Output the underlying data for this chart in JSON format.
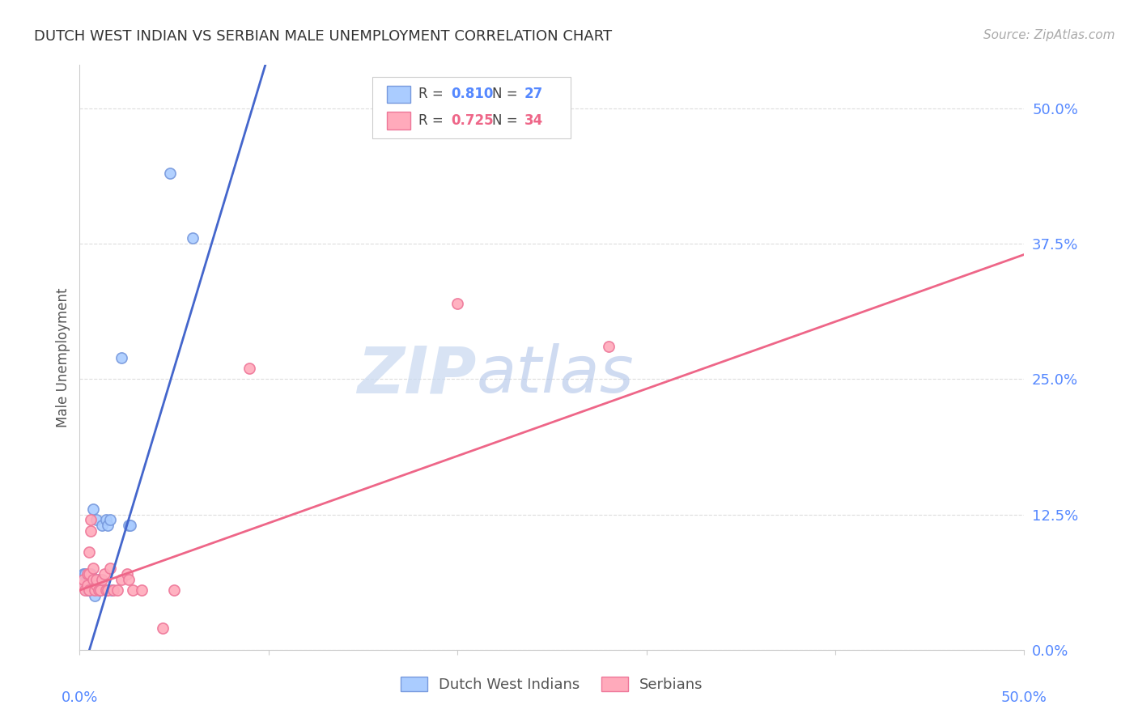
{
  "title": "DUTCH WEST INDIAN VS SERBIAN MALE UNEMPLOYMENT CORRELATION CHART",
  "source": "Source: ZipAtlas.com",
  "ylabel": "Male Unemployment",
  "ytick_labels": [
    "0.0%",
    "12.5%",
    "25.0%",
    "37.5%",
    "50.0%"
  ],
  "ytick_values": [
    0.0,
    0.125,
    0.25,
    0.375,
    0.5
  ],
  "xrange": [
    0.0,
    0.5
  ],
  "yrange": [
    0.0,
    0.54
  ],
  "background_color": "#ffffff",
  "grid_color": "#dddddd",
  "legend_R1": "0.810",
  "legend_N1": "27",
  "legend_R2": "0.725",
  "legend_N2": "34",
  "blue_line_color": "#4466cc",
  "pink_line_color": "#ee6688",
  "blue_scatter_face": "#aaccff",
  "pink_scatter_face": "#ffaabb",
  "blue_scatter_edge": "#7799dd",
  "pink_scatter_edge": "#ee7799",
  "tick_color": "#5588ff",
  "blue_scatter": [
    [
      0.001,
      0.065
    ],
    [
      0.002,
      0.07
    ],
    [
      0.003,
      0.06
    ],
    [
      0.003,
      0.07
    ],
    [
      0.004,
      0.055
    ],
    [
      0.004,
      0.065
    ],
    [
      0.005,
      0.06
    ],
    [
      0.005,
      0.065
    ],
    [
      0.005,
      0.055
    ],
    [
      0.006,
      0.07
    ],
    [
      0.006,
      0.06
    ],
    [
      0.007,
      0.055
    ],
    [
      0.007,
      0.13
    ],
    [
      0.008,
      0.05
    ],
    [
      0.009,
      0.12
    ],
    [
      0.01,
      0.065
    ],
    [
      0.011,
      0.055
    ],
    [
      0.012,
      0.115
    ],
    [
      0.014,
      0.12
    ],
    [
      0.015,
      0.115
    ],
    [
      0.016,
      0.12
    ],
    [
      0.017,
      0.055
    ],
    [
      0.022,
      0.27
    ],
    [
      0.026,
      0.115
    ],
    [
      0.027,
      0.115
    ],
    [
      0.048,
      0.44
    ],
    [
      0.06,
      0.38
    ]
  ],
  "pink_scatter": [
    [
      0.001,
      0.06
    ],
    [
      0.002,
      0.065
    ],
    [
      0.003,
      0.055
    ],
    [
      0.004,
      0.06
    ],
    [
      0.004,
      0.07
    ],
    [
      0.005,
      0.055
    ],
    [
      0.005,
      0.07
    ],
    [
      0.005,
      0.09
    ],
    [
      0.006,
      0.12
    ],
    [
      0.006,
      0.11
    ],
    [
      0.007,
      0.065
    ],
    [
      0.007,
      0.075
    ],
    [
      0.008,
      0.055
    ],
    [
      0.009,
      0.06
    ],
    [
      0.009,
      0.065
    ],
    [
      0.01,
      0.055
    ],
    [
      0.011,
      0.055
    ],
    [
      0.012,
      0.065
    ],
    [
      0.013,
      0.07
    ],
    [
      0.014,
      0.055
    ],
    [
      0.015,
      0.055
    ],
    [
      0.016,
      0.075
    ],
    [
      0.018,
      0.055
    ],
    [
      0.02,
      0.055
    ],
    [
      0.022,
      0.065
    ],
    [
      0.025,
      0.07
    ],
    [
      0.026,
      0.065
    ],
    [
      0.028,
      0.055
    ],
    [
      0.033,
      0.055
    ],
    [
      0.044,
      0.02
    ],
    [
      0.05,
      0.055
    ],
    [
      0.09,
      0.26
    ],
    [
      0.2,
      0.32
    ],
    [
      0.28,
      0.28
    ]
  ],
  "blue_line": {
    "slope": 5.8,
    "intercept": -0.03
  },
  "pink_line": {
    "slope": 0.62,
    "intercept": 0.055
  }
}
